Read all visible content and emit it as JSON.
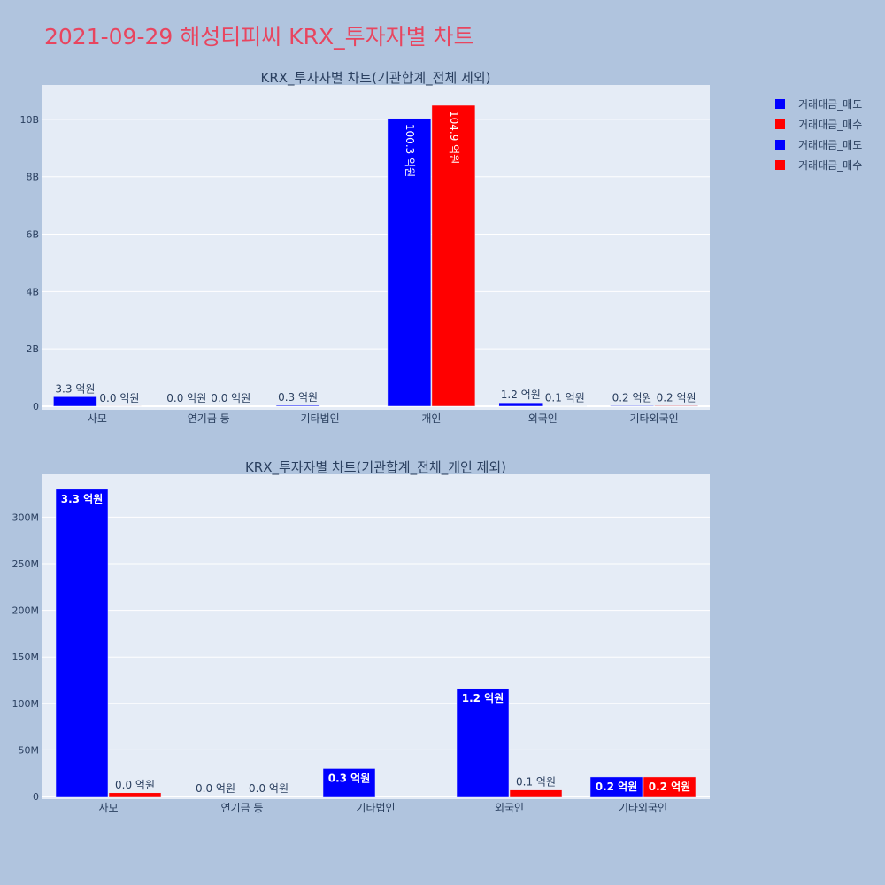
{
  "page": {
    "title": "2021-09-29 해성티피씨 KRX_투자자별 차트"
  },
  "legend": [
    {
      "label": "거래대금_매도",
      "color": "#0000ff"
    },
    {
      "label": "거래대금_매수",
      "color": "#ff0000"
    },
    {
      "label": "거래대금_매도",
      "color": "#0000ff"
    },
    {
      "label": "거래대금_매수",
      "color": "#ff0000"
    }
  ],
  "chart_data": [
    {
      "type": "bar",
      "title": "KRX_투자자별 차트(기관합계_전체 제외)",
      "categories": [
        "사모",
        "연기금 등",
        "기타법인",
        "개인",
        "외국인",
        "기타외국인"
      ],
      "ylim": [
        0,
        11200000000
      ],
      "yticks": [
        0,
        2000000000,
        4000000000,
        6000000000,
        8000000000,
        10000000000
      ],
      "ytick_labels": [
        "0",
        "2B",
        "4B",
        "6B",
        "8B",
        "10B"
      ],
      "grid": true,
      "series": [
        {
          "name": "거래대금_매도",
          "color": "#0000ff",
          "values": [
            330000000,
            0,
            30000000,
            10030000000,
            120000000,
            20000000
          ],
          "labels": [
            "3.3 억원",
            "0.0 억원",
            "0.3 억원",
            "100.3 억원",
            "1.2 억원",
            "0.2 억원"
          ]
        },
        {
          "name": "거래대금_매수",
          "color": "#ff0000",
          "values": [
            5000000,
            0,
            0,
            10490000000,
            8000000,
            20000000
          ],
          "labels": [
            "0.0 억원",
            "0.0 억원",
            "",
            "104.9 억원",
            "0.1 억원",
            "0.2 억원"
          ]
        }
      ]
    },
    {
      "type": "bar",
      "title": "KRX_투자자별 차트(기관합계_전체_개인 제외)",
      "categories": [
        "사모",
        "연기금 등",
        "기타법인",
        "외국인",
        "기타외국인"
      ],
      "ylim": [
        0,
        346000000
      ],
      "yticks": [
        0,
        50000000,
        100000000,
        150000000,
        200000000,
        250000000,
        300000000
      ],
      "ytick_labels": [
        "0",
        "50M",
        "100M",
        "150M",
        "200M",
        "250M",
        "300M"
      ],
      "grid": true,
      "series": [
        {
          "name": "거래대금_매도",
          "color": "#0000ff",
          "values": [
            330000000,
            0,
            30000000,
            116000000,
            21000000
          ],
          "labels": [
            "3.3 억원",
            "0.0 억원",
            "0.3 억원",
            "1.2 억원",
            "0.2 억원"
          ]
        },
        {
          "name": "거래대금_매수",
          "color": "#ff0000",
          "values": [
            4000000,
            0,
            0,
            7000000,
            21000000
          ],
          "labels": [
            "0.0 억원",
            "0.0 억원",
            "",
            "0.1 억원",
            "0.2 억원"
          ]
        }
      ]
    }
  ]
}
